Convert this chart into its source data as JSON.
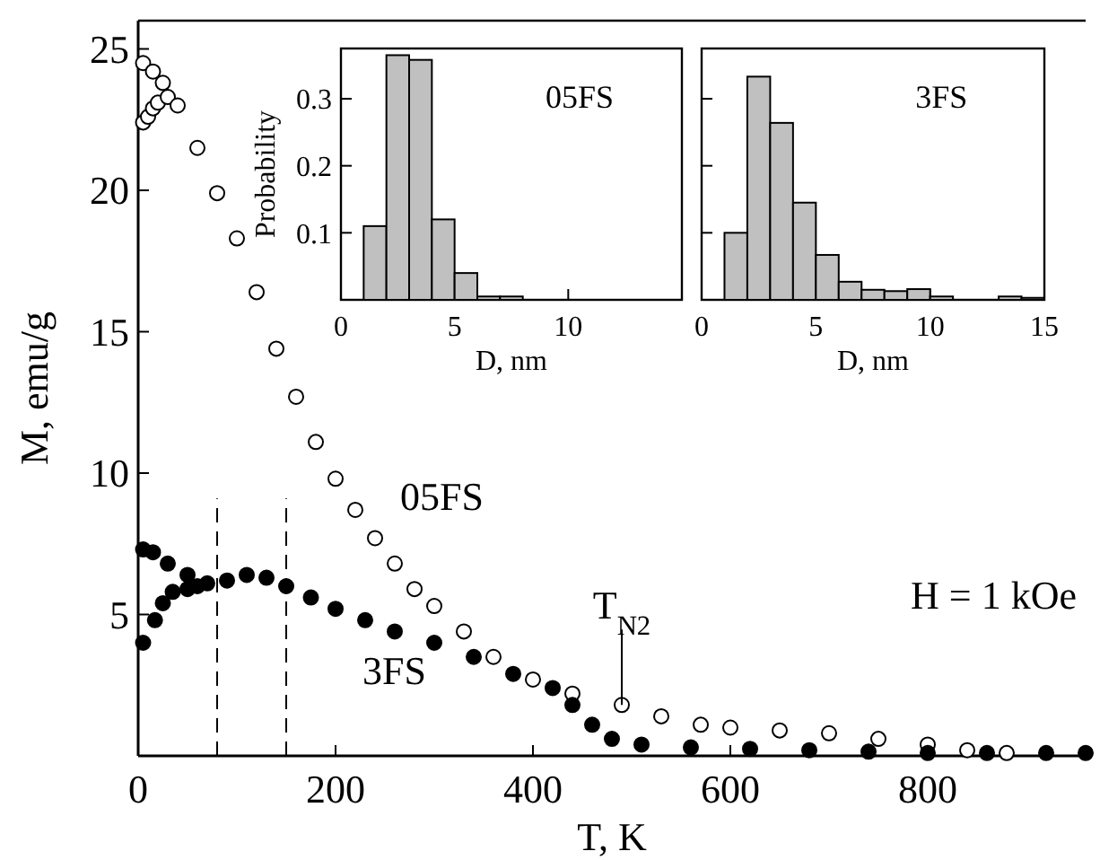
{
  "chart_data": [
    {
      "type": "scatter",
      "xlabel": "T, K",
      "ylabel": "M, emu/g",
      "xlim": [
        0,
        960
      ],
      "ylim": [
        0,
        26
      ],
      "xticks": [
        0,
        200,
        400,
        600,
        800
      ],
      "yticks": [
        5,
        10,
        15,
        20,
        25
      ],
      "marker": "circle",
      "series": [
        {
          "name": "05FS",
          "color": "#ffffff",
          "x": [
            5,
            10,
            15,
            20,
            30,
            5,
            15,
            25,
            40,
            60,
            80,
            100,
            120,
            140,
            160,
            180,
            200,
            220,
            240,
            260,
            280,
            300,
            330,
            360,
            400,
            440,
            490,
            530,
            570,
            600,
            650,
            700,
            750,
            800,
            840,
            880
          ],
          "values": [
            22.4,
            22.6,
            22.9,
            23.1,
            23.3,
            24.5,
            24.2,
            23.8,
            23.0,
            21.5,
            19.9,
            18.3,
            16.4,
            14.4,
            12.7,
            11.1,
            9.8,
            8.7,
            7.7,
            6.8,
            5.9,
            5.3,
            4.4,
            3.5,
            2.7,
            2.2,
            1.8,
            1.4,
            1.1,
            1.0,
            0.9,
            0.8,
            0.6,
            0.4,
            0.2,
            0.1
          ]
        },
        {
          "name": "3FS",
          "color": "#000000",
          "x": [
            5,
            17,
            25,
            35,
            50,
            60,
            5,
            15,
            30,
            50,
            70,
            90,
            110,
            130,
            150,
            175,
            200,
            230,
            260,
            300,
            340,
            380,
            420,
            440,
            460,
            480,
            510,
            560,
            620,
            680,
            740,
            800,
            860,
            920,
            960
          ],
          "values": [
            4.0,
            4.8,
            5.4,
            5.8,
            5.9,
            6.0,
            7.3,
            7.2,
            6.8,
            6.4,
            6.1,
            6.2,
            6.4,
            6.3,
            6.0,
            5.6,
            5.2,
            4.8,
            4.4,
            4.0,
            3.5,
            2.9,
            2.4,
            1.8,
            1.1,
            0.6,
            0.4,
            0.3,
            0.25,
            0.2,
            0.15,
            0.1,
            0.1,
            0.1,
            0.1
          ]
        }
      ],
      "ref_lines": [
        {
          "axis": "x",
          "value": 80,
          "line_style": "dashed"
        },
        {
          "axis": "x",
          "value": 150,
          "line_style": "dashed"
        }
      ],
      "annotations": [
        {
          "text": "T$_{N2}$",
          "x": 490,
          "y": 1.8
        },
        "H = 1 kOe"
      ]
    },
    {
      "type": "histogram",
      "xlabel": "D, nm",
      "ylabel": "Probability",
      "xlim": [
        0,
        15
      ],
      "ylim": [
        0,
        0.375
      ],
      "xticks": [
        0,
        5,
        10
      ],
      "yticks": [
        0.1,
        0.2,
        0.3
      ],
      "color": "#c0c0c0",
      "bins": [
        1,
        2,
        3,
        4,
        5,
        6,
        7,
        8
      ],
      "values": [
        0.11,
        0.365,
        0.358,
        0.12,
        0.04,
        0.005,
        0.005
      ],
      "annotations": [
        "05FS"
      ]
    },
    {
      "type": "histogram",
      "xlabel": "D, nm",
      "xlim": [
        0,
        15
      ],
      "ylim": [
        0,
        0.375
      ],
      "xticks": [
        0,
        5,
        10,
        15
      ],
      "yticks": [
        {
          "value": 0.1,
          "label": null
        },
        {
          "value": 0.2,
          "label": null
        },
        {
          "value": 0.3,
          "label": null
        }
      ],
      "tick_labels": "x",
      "color": "#c0c0c0",
      "bins": [
        1,
        2,
        3,
        4,
        5,
        6,
        7,
        8,
        9,
        10,
        11,
        12,
        13,
        14,
        15
      ],
      "values": [
        0.1,
        0.333,
        0.264,
        0.145,
        0.067,
        0.027,
        0.015,
        0.013,
        0.016,
        0.005,
        0,
        0,
        0.005,
        0.003
      ],
      "annotations": [
        "3FS"
      ]
    }
  ]
}
